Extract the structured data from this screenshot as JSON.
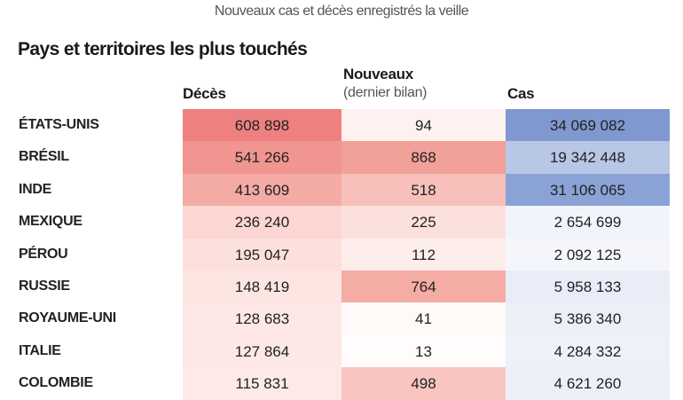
{
  "subtitle": "Nouveaux cas et décès enregistrés la veille",
  "chart_data": {
    "type": "table",
    "title": "Pays et territoires les plus touchés",
    "columns": [
      {
        "label": "Décès",
        "sublabel": ""
      },
      {
        "label": "Nouveaux",
        "sublabel": "(dernier bilan)"
      },
      {
        "label": "Cas",
        "sublabel": ""
      }
    ],
    "rows": [
      {
        "country": "ÉTATS-UNIS",
        "deces": "608 898",
        "nouveaux": "94",
        "cas": "34 069 082",
        "colors": [
          "#ee8080",
          "#fdf2ef",
          "#7f98d0"
        ]
      },
      {
        "country": "BRÉSIL",
        "deces": "541 266",
        "nouveaux": "868",
        "cas": "19 342 448",
        "colors": [
          "#f19590",
          "#f2a09a",
          "#b9c7e6"
        ]
      },
      {
        "country": "INDE",
        "deces": "413 609",
        "nouveaux": "518",
        "cas": "31 106 065",
        "colors": [
          "#f4aaa5",
          "#f7c0bb",
          "#8aa2d5"
        ]
      },
      {
        "country": "MEXIQUE",
        "deces": "236 240",
        "nouveaux": "225",
        "cas": "2 654 699",
        "colors": [
          "#fbd6d2",
          "#fbe0dc",
          "#f2f4fb"
        ]
      },
      {
        "country": "PÉROU",
        "deces": "195 047",
        "nouveaux": "112",
        "cas": "2 092 125",
        "colors": [
          "#fce0dc",
          "#fdeeeb",
          "#f4f6fc"
        ]
      },
      {
        "country": "RUSSIE",
        "deces": "148 419",
        "nouveaux": "764",
        "cas": "5 958 133",
        "colors": [
          "#fde5e2",
          "#f4aca5",
          "#e9edf8"
        ]
      },
      {
        "country": "ROYAUME-UNI",
        "deces": "128 683",
        "nouveaux": "41",
        "cas": "5 386 340",
        "colors": [
          "#fde8e5",
          "#fffaf8",
          "#ebeff8"
        ]
      },
      {
        "country": "ITALIE",
        "deces": "127 864",
        "nouveaux": "13",
        "cas": "4 284 332",
        "colors": [
          "#fde8e5",
          "#fffcfb",
          "#eef1f9"
        ]
      },
      {
        "country": "COLOMBIE",
        "deces": "115 831",
        "nouveaux": "498",
        "cas": "4 621 260",
        "colors": [
          "#fdeae7",
          "#f8c5c0",
          "#edf0f9"
        ]
      }
    ]
  }
}
